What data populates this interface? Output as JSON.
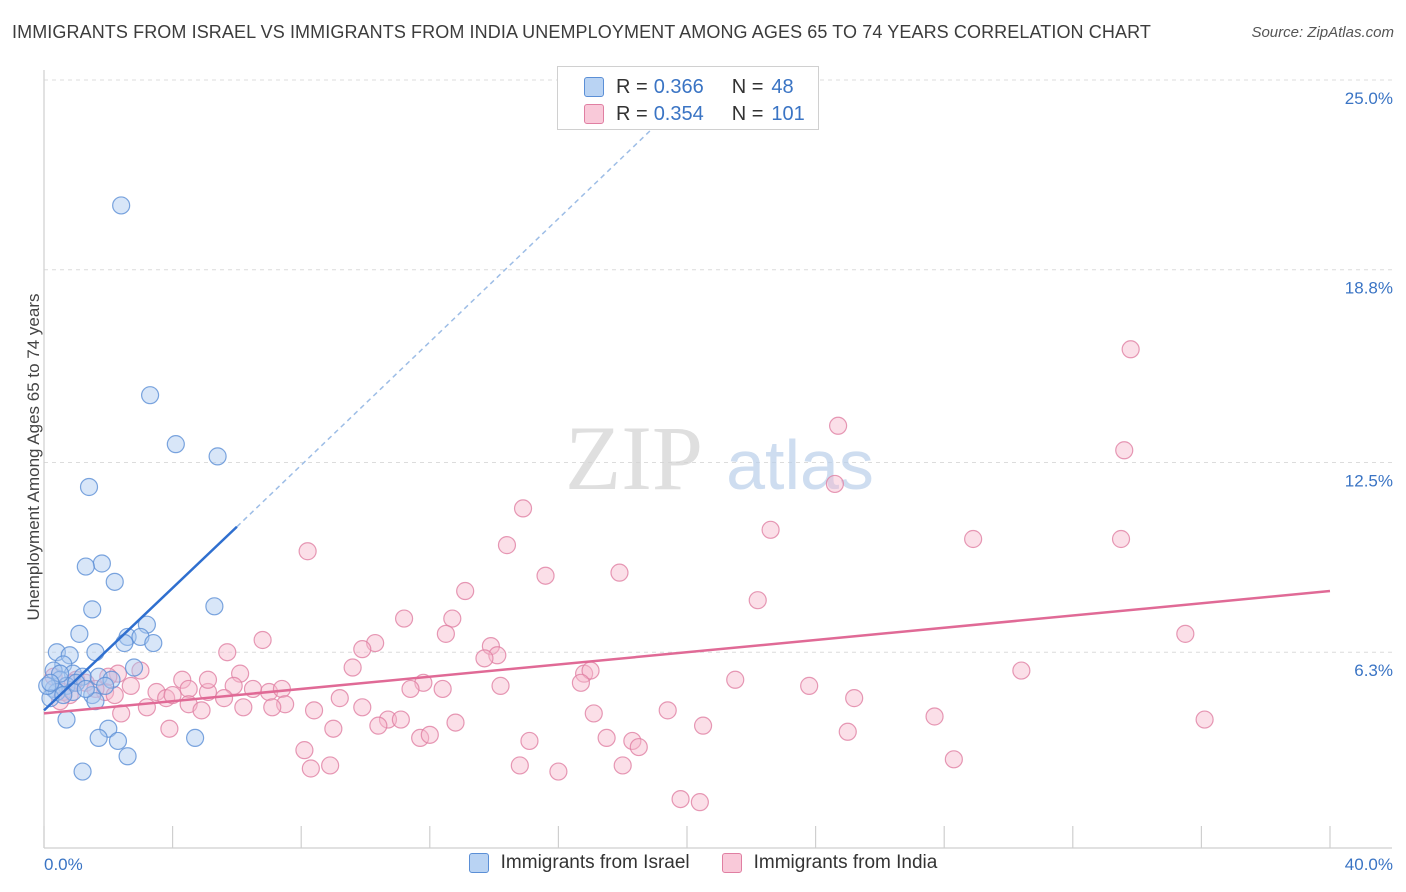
{
  "title": "IMMIGRANTS FROM ISRAEL VS IMMIGRANTS FROM INDIA UNEMPLOYMENT AMONG AGES 65 TO 74 YEARS CORRELATION CHART",
  "source": "Source: ZipAtlas.com",
  "watermark": {
    "zip": "ZIP",
    "atlas": "atlas"
  },
  "legend": [
    {
      "r_label": "R =",
      "r_value": "0.366",
      "n_label": "N =",
      "n_value": "48"
    },
    {
      "r_label": "R =",
      "r_value": "0.354",
      "n_label": "N =",
      "n_value": "101"
    }
  ],
  "colors": {
    "israel_fill": "#a9c8f0",
    "israel_stroke": "#5b8fd6",
    "israel_line": "#2f6fcf",
    "india_fill": "#f6b8cd",
    "india_stroke": "#e07fa2",
    "india_line": "#e06a96",
    "axis_text": "#3a74c4",
    "grid": "#dcdcdc"
  },
  "chart_data": {
    "type": "scatter",
    "title": "IMMIGRANTS FROM ISRAEL VS IMMIGRANTS FROM INDIA UNEMPLOYMENT AMONG AGES 65 TO 74 YEARS CORRELATION CHART",
    "xlabel": "",
    "ylabel": "Unemployment Among Ages 65 to 74 years",
    "xlim": [
      0,
      40
    ],
    "ylim": [
      0,
      25
    ],
    "x_tick_labels": [
      "0.0%",
      "40.0%"
    ],
    "y_ticks": [
      6.3,
      12.5,
      18.8,
      25.0
    ],
    "y_tick_labels": [
      "6.3%",
      "12.5%",
      "18.8%",
      "25.0%"
    ],
    "grid": "horizontal dashed",
    "legend_position": "bottom-center",
    "series": [
      {
        "name": "Immigrants from Israel",
        "points": [
          [
            2.4,
            20.9
          ],
          [
            3.3,
            14.7
          ],
          [
            4.1,
            13.1
          ],
          [
            5.4,
            12.7
          ],
          [
            1.4,
            11.7
          ],
          [
            1.8,
            9.2
          ],
          [
            1.3,
            9.1
          ],
          [
            2.2,
            8.6
          ],
          [
            5.3,
            7.8
          ],
          [
            1.5,
            7.7
          ],
          [
            3.2,
            7.2
          ],
          [
            1.1,
            6.9
          ],
          [
            2.6,
            6.8
          ],
          [
            3.0,
            6.8
          ],
          [
            1.6,
            6.3
          ],
          [
            3.4,
            6.6
          ],
          [
            2.5,
            6.6
          ],
          [
            0.4,
            6.3
          ],
          [
            0.8,
            6.2
          ],
          [
            0.6,
            5.9
          ],
          [
            0.3,
            5.7
          ],
          [
            0.9,
            5.6
          ],
          [
            1.7,
            5.5
          ],
          [
            2.8,
            5.8
          ],
          [
            1.2,
            5.5
          ],
          [
            0.5,
            5.4
          ],
          [
            0.7,
            5.2
          ],
          [
            1.0,
            5.3
          ],
          [
            0.3,
            5.1
          ],
          [
            0.4,
            5.0
          ],
          [
            0.9,
            5.0
          ],
          [
            1.5,
            4.9
          ],
          [
            0.2,
            4.8
          ],
          [
            0.6,
            4.9
          ],
          [
            2.1,
            5.4
          ],
          [
            1.6,
            4.7
          ],
          [
            0.7,
            4.1
          ],
          [
            2.0,
            3.8
          ],
          [
            1.7,
            3.5
          ],
          [
            2.3,
            3.4
          ],
          [
            4.7,
            3.5
          ],
          [
            2.6,
            2.9
          ],
          [
            1.2,
            2.4
          ],
          [
            1.9,
            5.2
          ],
          [
            0.1,
            5.2
          ],
          [
            0.5,
            5.6
          ],
          [
            1.3,
            5.1
          ],
          [
            0.2,
            5.3
          ]
        ]
      },
      {
        "name": "Immigrants from India",
        "points": [
          [
            33.8,
            16.2
          ],
          [
            24.7,
            13.7
          ],
          [
            33.6,
            12.9
          ],
          [
            24.6,
            11.8
          ],
          [
            14.9,
            11.0
          ],
          [
            22.6,
            10.3
          ],
          [
            28.9,
            10.0
          ],
          [
            33.5,
            10.0
          ],
          [
            14.4,
            9.8
          ],
          [
            8.2,
            9.6
          ],
          [
            15.6,
            8.8
          ],
          [
            17.9,
            8.9
          ],
          [
            13.1,
            8.3
          ],
          [
            22.2,
            8.0
          ],
          [
            11.2,
            7.4
          ],
          [
            12.7,
            7.4
          ],
          [
            12.5,
            6.9
          ],
          [
            35.5,
            6.9
          ],
          [
            6.8,
            6.7
          ],
          [
            10.3,
            6.6
          ],
          [
            13.9,
            6.5
          ],
          [
            9.9,
            6.4
          ],
          [
            14.1,
            6.2
          ],
          [
            5.7,
            6.3
          ],
          [
            13.7,
            6.1
          ],
          [
            9.6,
            5.8
          ],
          [
            6.1,
            5.6
          ],
          [
            16.8,
            5.6
          ],
          [
            17.0,
            5.7
          ],
          [
            30.4,
            5.7
          ],
          [
            21.5,
            5.4
          ],
          [
            2.3,
            5.6
          ],
          [
            3.0,
            5.7
          ],
          [
            4.3,
            5.4
          ],
          [
            16.7,
            5.3
          ],
          [
            5.9,
            5.2
          ],
          [
            11.8,
            5.3
          ],
          [
            7.0,
            5.0
          ],
          [
            12.4,
            5.1
          ],
          [
            14.2,
            5.2
          ],
          [
            23.8,
            5.2
          ],
          [
            3.5,
            5.0
          ],
          [
            4.5,
            5.1
          ],
          [
            5.1,
            5.0
          ],
          [
            6.5,
            5.1
          ],
          [
            7.4,
            5.1
          ],
          [
            11.4,
            5.1
          ],
          [
            2.7,
            5.2
          ],
          [
            3.8,
            4.8
          ],
          [
            4.0,
            4.9
          ],
          [
            5.6,
            4.8
          ],
          [
            3.2,
            4.5
          ],
          [
            4.5,
            4.6
          ],
          [
            6.2,
            4.5
          ],
          [
            9.2,
            4.8
          ],
          [
            25.2,
            4.8
          ],
          [
            7.5,
            4.6
          ],
          [
            8.4,
            4.4
          ],
          [
            2.4,
            4.3
          ],
          [
            4.9,
            4.4
          ],
          [
            9.9,
            4.5
          ],
          [
            10.7,
            4.1
          ],
          [
            10.4,
            3.9
          ],
          [
            11.1,
            4.1
          ],
          [
            12.8,
            4.0
          ],
          [
            17.1,
            4.3
          ],
          [
            19.4,
            4.4
          ],
          [
            20.5,
            3.9
          ],
          [
            25.0,
            3.7
          ],
          [
            27.7,
            4.2
          ],
          [
            36.1,
            4.1
          ],
          [
            7.1,
            4.5
          ],
          [
            3.9,
            3.8
          ],
          [
            9.0,
            3.8
          ],
          [
            11.7,
            3.5
          ],
          [
            12.0,
            3.6
          ],
          [
            15.1,
            3.4
          ],
          [
            17.5,
            3.5
          ],
          [
            18.3,
            3.4
          ],
          [
            18.5,
            3.2
          ],
          [
            8.1,
            3.1
          ],
          [
            8.9,
            2.6
          ],
          [
            8.3,
            2.5
          ],
          [
            14.8,
            2.6
          ],
          [
            16.0,
            2.4
          ],
          [
            18.0,
            2.6
          ],
          [
            28.3,
            2.8
          ],
          [
            19.8,
            1.5
          ],
          [
            20.4,
            1.4
          ],
          [
            1.0,
            5.4
          ],
          [
            1.9,
            5.0
          ],
          [
            0.8,
            4.9
          ],
          [
            0.3,
            5.5
          ],
          [
            1.3,
            5.3
          ],
          [
            2.0,
            5.5
          ],
          [
            0.6,
            5.0
          ],
          [
            5.1,
            5.4
          ],
          [
            0.5,
            4.7
          ],
          [
            1.6,
            5.1
          ],
          [
            2.2,
            4.9
          ],
          [
            0.9,
            5.3
          ]
        ]
      }
    ],
    "trend_lines": [
      {
        "series": "Immigrants from Israel",
        "solid": [
          [
            0,
            4.4
          ],
          [
            6,
            10.4
          ]
        ],
        "dashed_to": [
          20.5,
          25.0
        ]
      },
      {
        "series": "Immigrants from India",
        "solid": [
          [
            0,
            4.3
          ],
          [
            40,
            8.3
          ]
        ]
      }
    ]
  }
}
